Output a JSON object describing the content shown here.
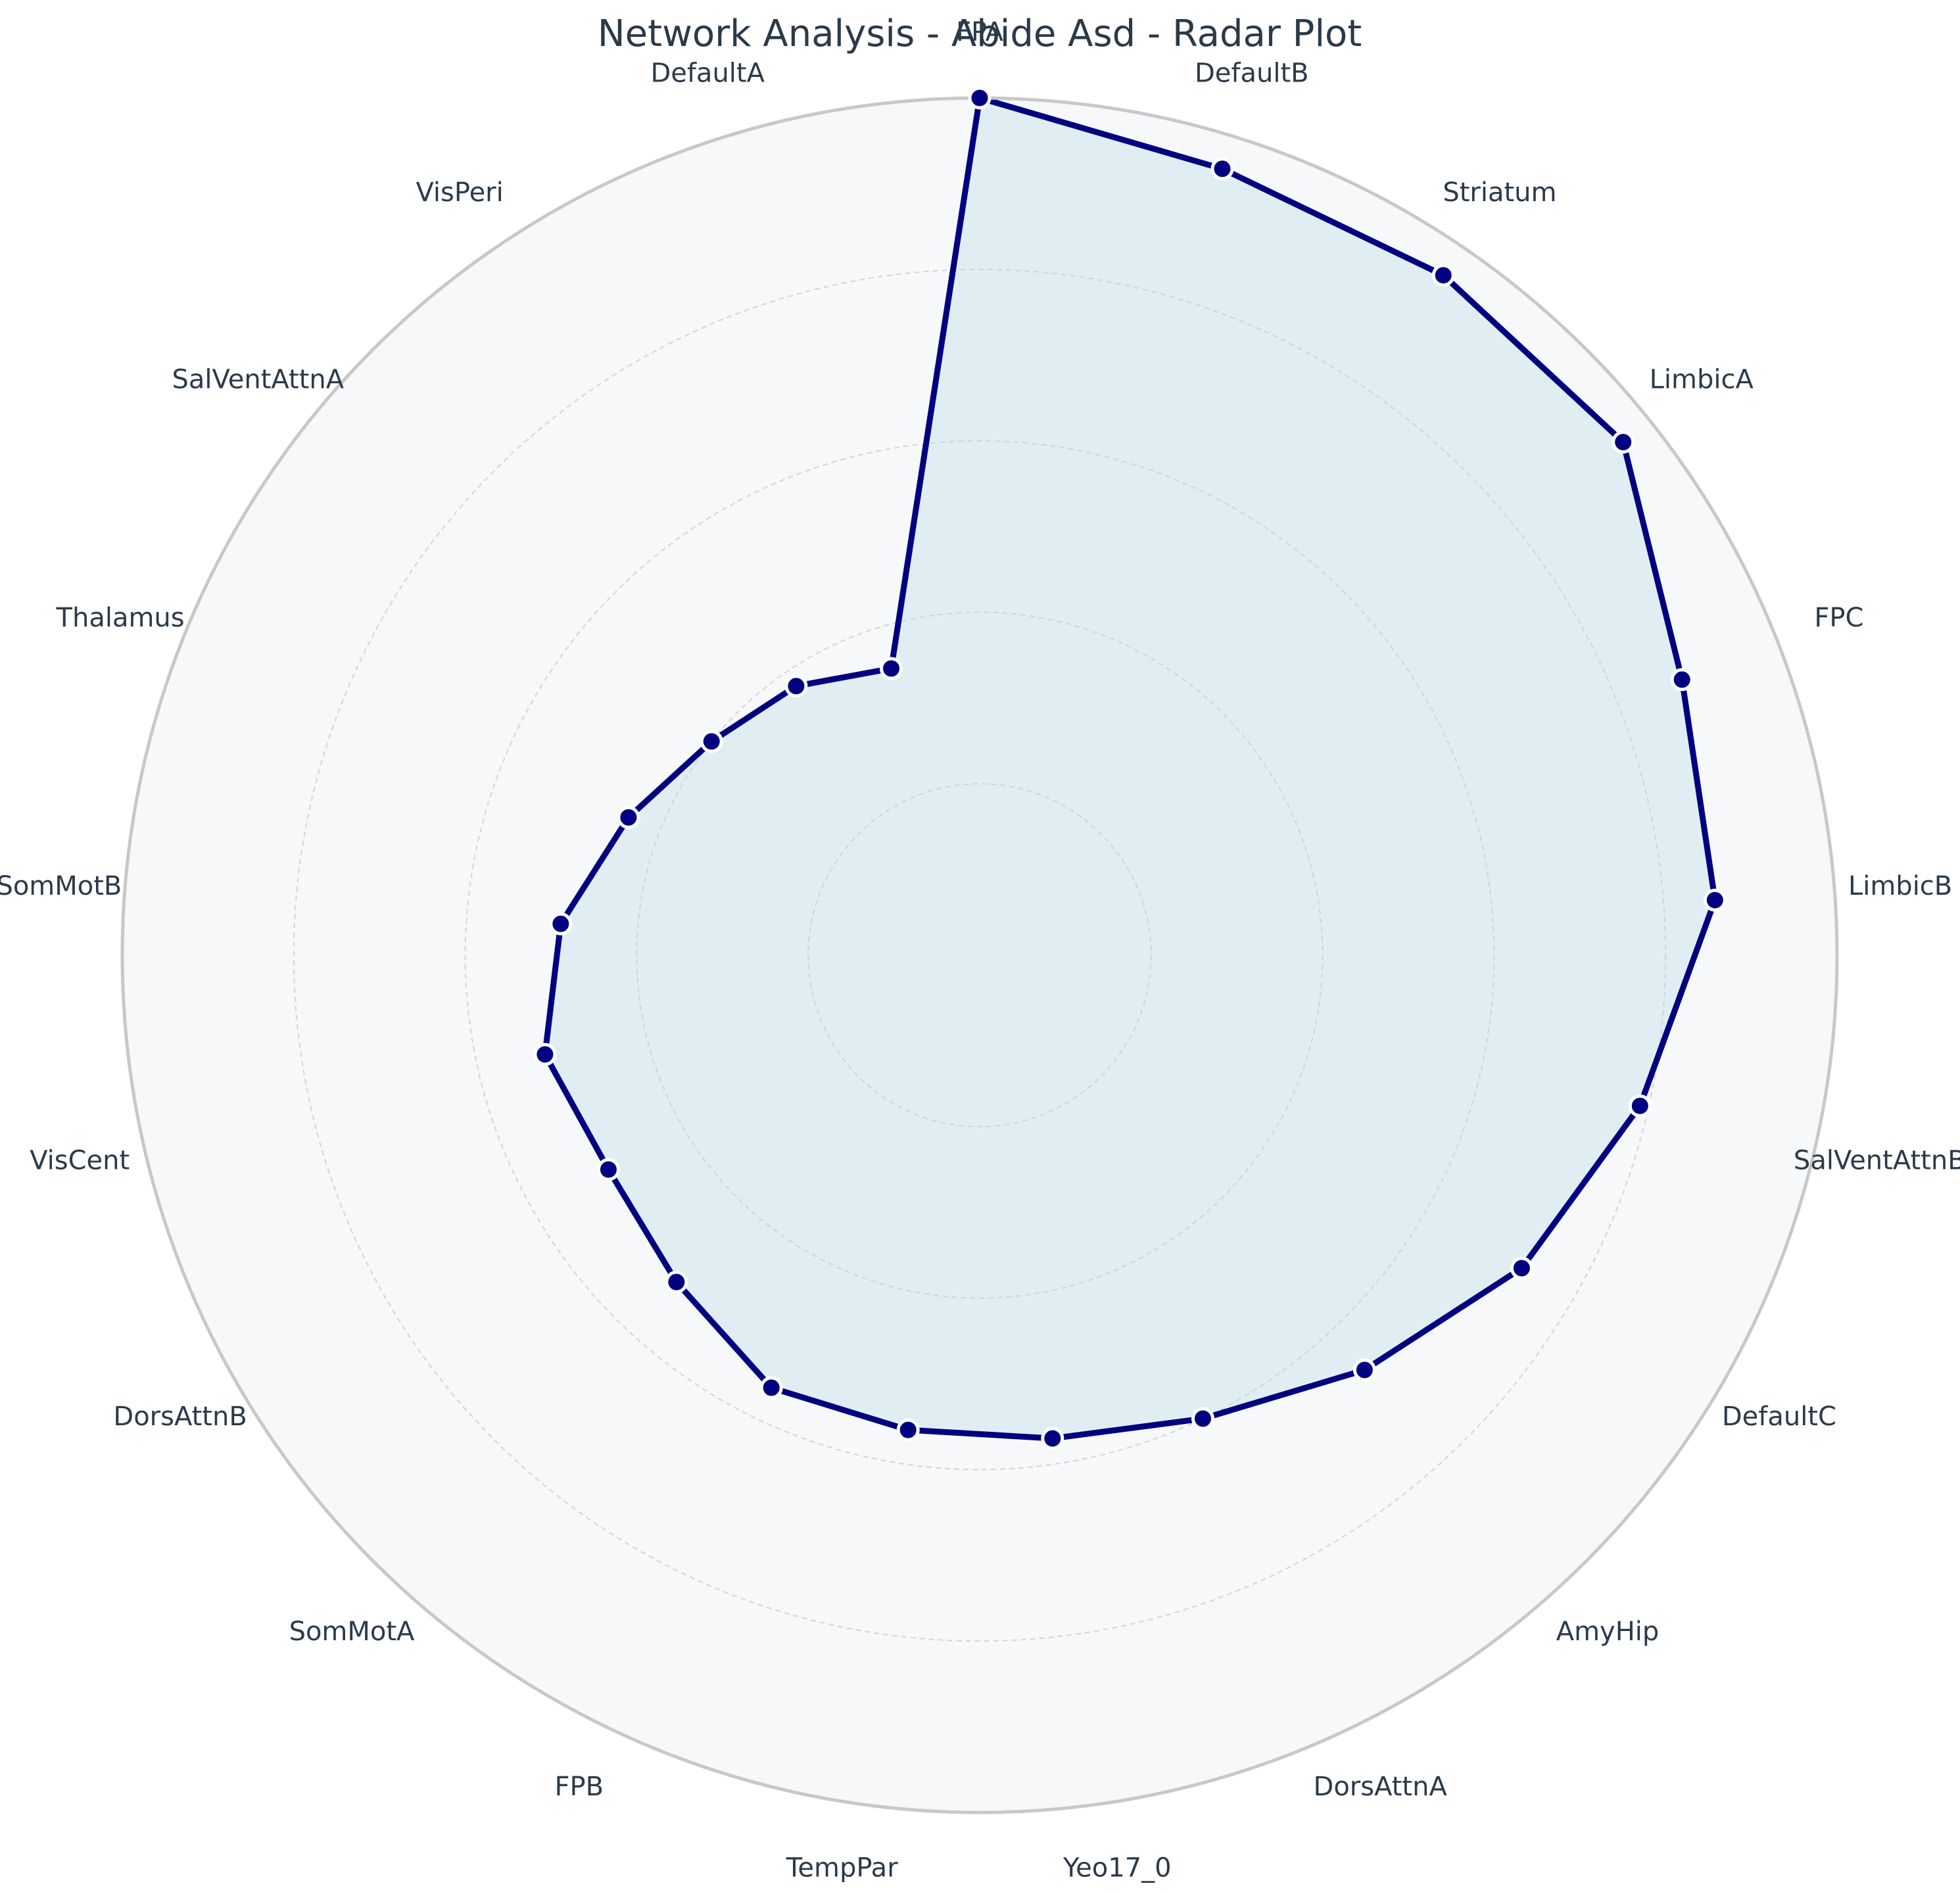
{
  "chart_data": {
    "type": "radar",
    "title": "Network Analysis - Abide Asd - Radar Plot",
    "categories": [
      "FPA",
      "DefaultB",
      "Striatum",
      "LimbicA",
      "FPC",
      "LimbicB",
      "SalVentAttnB",
      "DefaultC",
      "AmyHip",
      "DorsAttnA",
      "Yeo17_0",
      "TempPar",
      "FPB",
      "SomMotA",
      "DorsAttnB",
      "VisCent",
      "SomMotB",
      "Thalamus",
      "SalVentAttnA",
      "VisPeri",
      "DefaultA"
    ],
    "series": [
      {
        "values": [
          1.0,
          0.96,
          0.96,
          0.96,
          0.88,
          0.86,
          0.79,
          0.73,
          0.66,
          0.6,
          0.57,
          0.56,
          0.56,
          0.52,
          0.5,
          0.52,
          0.49,
          0.44,
          0.4,
          0.38,
          0.35
        ]
      }
    ],
    "rlim": [
      0,
      1
    ],
    "rgrid": [
      0.2,
      0.4,
      0.6,
      0.8,
      1.0
    ],
    "grid": true,
    "colors": {
      "line": "#000080",
      "fill": "#add8e6",
      "background": "#f7f8fa",
      "outer_ring": "#c8c8c8",
      "grid": "#d4d4d4",
      "marker_edge": "#ffffff"
    }
  }
}
